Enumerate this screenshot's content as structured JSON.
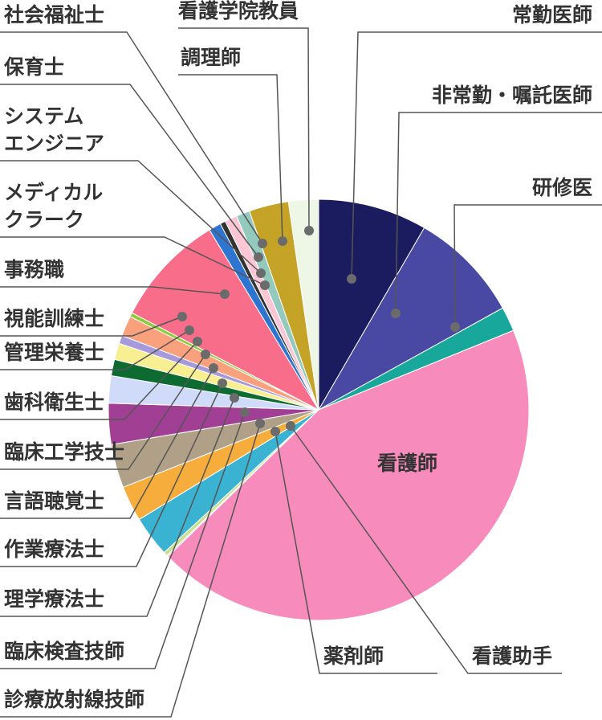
{
  "chart_data": {
    "type": "pie",
    "title": "",
    "start_angle_deg": 0,
    "direction": "clockwise",
    "slices": [
      {
        "label": "常勤医師",
        "value": 8.0,
        "color": "#1b1b60"
      },
      {
        "label": "非常勤・嘱託医師",
        "value": 8.2,
        "color": "#4949a3"
      },
      {
        "label": "研修医",
        "value": 1.8,
        "color": "#17a89b"
      },
      {
        "label": "看護師",
        "value": 41.9,
        "color": "#f78bbc"
      },
      {
        "label": "看護助手",
        "value": 0.1,
        "color": "#f8b4d3"
      },
      {
        "label": "薬剤師",
        "value": 0.3,
        "color": "#c7e08a"
      },
      {
        "label": "診療放射線技師",
        "value": 3.0,
        "color": "#3ab3d3"
      },
      {
        "label": "臨床検査技師",
        "value": 2.6,
        "color": "#f6ad3c"
      },
      {
        "label": "理学療法士",
        "value": 3.2,
        "color": "#b0a088"
      },
      {
        "label": "作業療法士",
        "value": 3.0,
        "color": "#a03f93"
      },
      {
        "label": "言語聴覚士",
        "value": 2.0,
        "color": "#d0dbfa"
      },
      {
        "label": "臨床工学技士",
        "value": 1.2,
        "color": "#0d6b32"
      },
      {
        "label": "歯科衛生士",
        "value": 1.2,
        "color": "#f8ef93"
      },
      {
        "label": "管理栄養士",
        "value": 0.6,
        "color": "#a69adb"
      },
      {
        "label": "視能訓練士",
        "value": 1.5,
        "color": "#f9a07d"
      },
      {
        "label": "事務職",
        "value": 0.3,
        "color": "#8ccb3c"
      },
      {
        "label": "事務職",
        "value": 8.3,
        "color": "#f86e8a"
      },
      {
        "label": "メディカル\nクラーク",
        "value": 0.9,
        "color": "#2e74d1"
      },
      {
        "label": "システム\nエンジニア",
        "value": 0.4,
        "color": "#333333"
      },
      {
        "label": "保育士",
        "value": 0.9,
        "color": "#fbc6d6"
      },
      {
        "label": "社会福祉士",
        "value": 1.0,
        "color": "#94c9bd"
      },
      {
        "label": "調理師",
        "value": 2.9,
        "color": "#c5a326"
      },
      {
        "label": "看護学院教員",
        "value": 2.2,
        "color": "#eef6e6"
      }
    ],
    "labels": {
      "jokin": "常勤医師",
      "hijokin": "非常勤・嘱託医師",
      "kenshu": "研修医",
      "kango": "看護師",
      "kango_joshu": "看護助手",
      "yakuzai": "薬剤師",
      "hoshasen": "診療放射線技師",
      "kensa": "臨床検査技師",
      "rigaku": "理学療法士",
      "sagyo": "作業療法士",
      "gengo": "言語聴覚士",
      "kogaku": "臨床工学技士",
      "shika": "歯科衛生士",
      "eiyo": "管理栄養士",
      "shino": "視能訓練士",
      "jimu": "事務職",
      "medical_1": "メディカル",
      "medical_2": "クラーク",
      "system_1": "システム",
      "system_2": "エンジニア",
      "hoiku": "保育士",
      "fukushi": "社会福祉士",
      "chori": "調理師",
      "kyoin": "看護学院教員"
    }
  }
}
